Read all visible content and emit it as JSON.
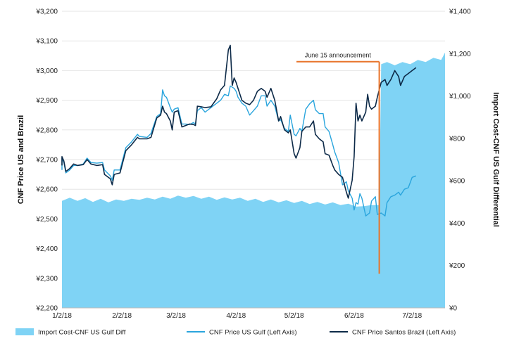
{
  "chart_data": {
    "type": "line",
    "left_axis": {
      "label": "CNF Price US and Brazil",
      "range": [
        2200,
        3200
      ],
      "ticks": [
        "¥2,200",
        "¥2,300",
        "¥2,400",
        "¥2,500",
        "¥2,600",
        "¥2,700",
        "¥2,800",
        "¥2,900",
        "¥3,000",
        "¥3,100",
        "¥3,200"
      ]
    },
    "right_axis": {
      "label": "Import Cost-CNF US Gulf Differential",
      "range": [
        0,
        1400
      ],
      "ticks": [
        "¥0",
        "¥200",
        "¥400",
        "¥600",
        "¥800",
        "¥1,000",
        "¥1,200",
        "¥1,400"
      ]
    },
    "x_axis": {
      "range": [
        0,
        198
      ],
      "ticks": [
        {
          "day": 0,
          "label": "1/2/18"
        },
        {
          "day": 31,
          "label": "2/2/18"
        },
        {
          "day": 59,
          "label": "3/2/18"
        },
        {
          "day": 90,
          "label": "4/2/18"
        },
        {
          "day": 120,
          "label": "5/2/18"
        },
        {
          "day": 151,
          "label": "6/2/18"
        },
        {
          "day": 181,
          "label": "7/2/18"
        }
      ]
    },
    "annotation": {
      "text": "June 15 announcement",
      "day": 164,
      "y_top": 3030,
      "y_bottom": 2315
    },
    "colors": {
      "area": "#7fd3f5",
      "us_gulf": "#2aa5dd",
      "brazil": "#0d2a48",
      "annotation": "#e8742b"
    },
    "series": [
      {
        "name": "Import Cost-CNF US Gulf Diff",
        "axis": "right",
        "kind": "area",
        "points": [
          [
            -9,
            510
          ],
          [
            0,
            505
          ],
          [
            4,
            520
          ],
          [
            8,
            505
          ],
          [
            12,
            518
          ],
          [
            16,
            500
          ],
          [
            20,
            515
          ],
          [
            24,
            498
          ],
          [
            28,
            512
          ],
          [
            32,
            505
          ],
          [
            36,
            515
          ],
          [
            40,
            510
          ],
          [
            44,
            520
          ],
          [
            48,
            512
          ],
          [
            52,
            525
          ],
          [
            56,
            515
          ],
          [
            60,
            530
          ],
          [
            64,
            520
          ],
          [
            68,
            528
          ],
          [
            72,
            515
          ],
          [
            76,
            525
          ],
          [
            80,
            510
          ],
          [
            84,
            522
          ],
          [
            88,
            512
          ],
          [
            92,
            520
          ],
          [
            96,
            505
          ],
          [
            100,
            515
          ],
          [
            104,
            500
          ],
          [
            108,
            512
          ],
          [
            112,
            498
          ],
          [
            116,
            508
          ],
          [
            120,
            495
          ],
          [
            124,
            505
          ],
          [
            128,
            490
          ],
          [
            132,
            500
          ],
          [
            136,
            488
          ],
          [
            140,
            498
          ],
          [
            144,
            485
          ],
          [
            148,
            492
          ],
          [
            152,
            478
          ],
          [
            156,
            480
          ],
          [
            160,
            485
          ],
          [
            164,
            485
          ],
          [
            165,
            1150
          ],
          [
            168,
            1160
          ],
          [
            172,
            1145
          ],
          [
            176,
            1160
          ],
          [
            180,
            1150
          ],
          [
            184,
            1170
          ],
          [
            188,
            1160
          ],
          [
            192,
            1180
          ],
          [
            196,
            1170
          ],
          [
            200,
            1205
          ],
          [
            202,
            1200
          ]
        ]
      },
      {
        "name": "CNF Price US Gulf (Left Axis)",
        "axis": "left",
        "kind": "line",
        "points": [
          [
            -9,
            2665
          ],
          [
            -6,
            2685
          ],
          [
            -3,
            2690
          ],
          [
            0,
            2705
          ],
          [
            1,
            2690
          ],
          [
            2,
            2655
          ],
          [
            4,
            2665
          ],
          [
            6,
            2680
          ],
          [
            8,
            2680
          ],
          [
            11,
            2685
          ],
          [
            13,
            2705
          ],
          [
            15,
            2690
          ],
          [
            18,
            2688
          ],
          [
            21,
            2690
          ],
          [
            22,
            2665
          ],
          [
            25,
            2645
          ],
          [
            26,
            2630
          ],
          [
            27,
            2665
          ],
          [
            30,
            2665
          ],
          [
            33,
            2740
          ],
          [
            36,
            2760
          ],
          [
            39,
            2785
          ],
          [
            40,
            2778
          ],
          [
            44,
            2775
          ],
          [
            46,
            2788
          ],
          [
            49,
            2845
          ],
          [
            51,
            2855
          ],
          [
            52,
            2935
          ],
          [
            53,
            2915
          ],
          [
            54,
            2910
          ],
          [
            56,
            2875
          ],
          [
            57,
            2860
          ],
          [
            58,
            2870
          ],
          [
            60,
            2875
          ],
          [
            62,
            2820
          ],
          [
            64,
            2820
          ],
          [
            66,
            2818
          ],
          [
            68,
            2825
          ],
          [
            69,
            2820
          ],
          [
            70,
            2865
          ],
          [
            72,
            2875
          ],
          [
            74,
            2860
          ],
          [
            77,
            2875
          ],
          [
            80,
            2890
          ],
          [
            82,
            2900
          ],
          [
            84,
            2920
          ],
          [
            86,
            2915
          ],
          [
            87,
            2948
          ],
          [
            89,
            2940
          ],
          [
            90,
            2930
          ],
          [
            91,
            2910
          ],
          [
            93,
            2890
          ],
          [
            95,
            2880
          ],
          [
            97,
            2850
          ],
          [
            99,
            2865
          ],
          [
            101,
            2880
          ],
          [
            103,
            2915
          ],
          [
            105,
            2915
          ],
          [
            106,
            2880
          ],
          [
            108,
            2900
          ],
          [
            110,
            2880
          ],
          [
            112,
            2830
          ],
          [
            113,
            2835
          ],
          [
            115,
            2805
          ],
          [
            117,
            2795
          ],
          [
            118,
            2850
          ],
          [
            120,
            2785
          ],
          [
            121,
            2780
          ],
          [
            123,
            2805
          ],
          [
            124,
            2795
          ],
          [
            126,
            2870
          ],
          [
            128,
            2888
          ],
          [
            130,
            2900
          ],
          [
            131,
            2868
          ],
          [
            133,
            2855
          ],
          [
            135,
            2855
          ],
          [
            136,
            2810
          ],
          [
            138,
            2795
          ],
          [
            140,
            2750
          ],
          [
            141,
            2725
          ],
          [
            143,
            2690
          ],
          [
            145,
            2615
          ],
          [
            147,
            2625
          ],
          [
            148,
            2595
          ],
          [
            150,
            2570
          ],
          [
            151,
            2530
          ],
          [
            152,
            2555
          ],
          [
            153,
            2550
          ],
          [
            154,
            2585
          ],
          [
            155,
            2570
          ],
          [
            157,
            2510
          ],
          [
            159,
            2520
          ],
          [
            160,
            2560
          ],
          [
            162,
            2575
          ],
          [
            163,
            2515
          ],
          [
            165,
            2520
          ],
          [
            167,
            2510
          ],
          [
            168,
            2555
          ],
          [
            170,
            2575
          ],
          [
            172,
            2580
          ],
          [
            174,
            2590
          ],
          [
            175,
            2580
          ],
          [
            177,
            2600
          ],
          [
            179,
            2605
          ],
          [
            181,
            2640
          ],
          [
            183,
            2645
          ]
        ]
      },
      {
        "name": "CNF Price Santos Brazil (Left Axis)",
        "axis": "left",
        "kind": "line",
        "points": [
          [
            -9,
            2680
          ],
          [
            -6,
            2700
          ],
          [
            -3,
            2700
          ],
          [
            0,
            2710
          ],
          [
            1,
            2695
          ],
          [
            2,
            2660
          ],
          [
            4,
            2670
          ],
          [
            6,
            2685
          ],
          [
            8,
            2680
          ],
          [
            11,
            2683
          ],
          [
            13,
            2700
          ],
          [
            15,
            2685
          ],
          [
            18,
            2680
          ],
          [
            21,
            2683
          ],
          [
            22,
            2650
          ],
          [
            25,
            2635
          ],
          [
            26,
            2615
          ],
          [
            27,
            2650
          ],
          [
            30,
            2655
          ],
          [
            33,
            2730
          ],
          [
            36,
            2750
          ],
          [
            39,
            2775
          ],
          [
            40,
            2770
          ],
          [
            44,
            2770
          ],
          [
            46,
            2775
          ],
          [
            49,
            2840
          ],
          [
            51,
            2850
          ],
          [
            52,
            2880
          ],
          [
            53,
            2860
          ],
          [
            54,
            2855
          ],
          [
            56,
            2830
          ],
          [
            57,
            2800
          ],
          [
            58,
            2860
          ],
          [
            60,
            2865
          ],
          [
            62,
            2810
          ],
          [
            64,
            2815
          ],
          [
            66,
            2820
          ],
          [
            68,
            2818
          ],
          [
            69,
            2815
          ],
          [
            70,
            2880
          ],
          [
            72,
            2878
          ],
          [
            74,
            2875
          ],
          [
            77,
            2878
          ],
          [
            80,
            2905
          ],
          [
            82,
            2935
          ],
          [
            84,
            2950
          ],
          [
            86,
            3070
          ],
          [
            87,
            3085
          ],
          [
            88,
            2950
          ],
          [
            89,
            2975
          ],
          [
            90,
            2960
          ],
          [
            91,
            2940
          ],
          [
            93,
            2900
          ],
          [
            95,
            2890
          ],
          [
            97,
            2885
          ],
          [
            99,
            2900
          ],
          [
            101,
            2930
          ],
          [
            103,
            2940
          ],
          [
            105,
            2930
          ],
          [
            106,
            2910
          ],
          [
            108,
            2940
          ],
          [
            110,
            2900
          ],
          [
            112,
            2830
          ],
          [
            113,
            2845
          ],
          [
            115,
            2800
          ],
          [
            117,
            2790
          ],
          [
            118,
            2800
          ],
          [
            120,
            2720
          ],
          [
            121,
            2705
          ],
          [
            123,
            2740
          ],
          [
            124,
            2795
          ],
          [
            126,
            2810
          ],
          [
            128,
            2810
          ],
          [
            130,
            2830
          ],
          [
            131,
            2785
          ],
          [
            133,
            2770
          ],
          [
            135,
            2760
          ],
          [
            136,
            2720
          ],
          [
            138,
            2715
          ],
          [
            140,
            2680
          ],
          [
            141,
            2665
          ],
          [
            143,
            2650
          ],
          [
            145,
            2640
          ],
          [
            147,
            2590
          ],
          [
            148,
            2570
          ],
          [
            150,
            2630
          ],
          [
            151,
            2710
          ],
          [
            152,
            2890
          ],
          [
            153,
            2830
          ],
          [
            154,
            2850
          ],
          [
            155,
            2830
          ],
          [
            157,
            2860
          ],
          [
            158,
            2920
          ],
          [
            159,
            2880
          ],
          [
            160,
            2870
          ],
          [
            162,
            2880
          ],
          [
            163,
            2910
          ],
          [
            165,
            2960
          ],
          [
            167,
            2970
          ],
          [
            168,
            2950
          ],
          [
            170,
            2970
          ],
          [
            172,
            3000
          ],
          [
            174,
            2980
          ],
          [
            175,
            2950
          ],
          [
            177,
            2980
          ],
          [
            179,
            2990
          ],
          [
            181,
            3000
          ],
          [
            183,
            3010
          ]
        ]
      }
    ],
    "legend": [
      {
        "label": "Import Cost-CNF US Gulf Diff",
        "kind": "area"
      },
      {
        "label": "CNF Price US Gulf (Left Axis)",
        "kind": "line"
      },
      {
        "label": "CNF Price Santos Brazil (Left Axis)",
        "kind": "line"
      }
    ]
  }
}
